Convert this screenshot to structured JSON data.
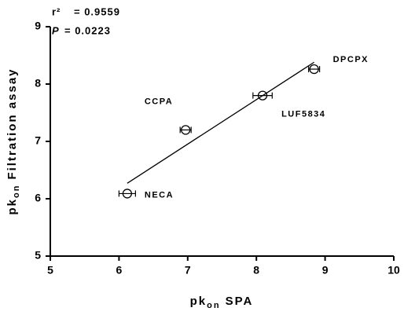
{
  "chart_data": {
    "type": "scatter",
    "xlabel_parts": [
      "pk",
      "on",
      "SPA"
    ],
    "ylabel_parts": [
      "pk",
      "on",
      "Filtration assay"
    ],
    "annotations": [
      {
        "label": "r²",
        "text": "= 0.9559"
      },
      {
        "label": "P",
        "text": "= 0.0223"
      }
    ],
    "labels": [
      "NECA",
      "CCPA",
      "LUF5834",
      "DPCPX"
    ],
    "x": [
      6.12,
      6.97,
      8.09,
      8.84
    ],
    "xerr": [
      0.12,
      0.08,
      0.14,
      0.08
    ],
    "y": [
      6.09,
      7.2,
      7.8,
      8.26
    ],
    "fit": {
      "x": [
        6.12,
        8.84
      ],
      "y": [
        6.27,
        8.38
      ]
    },
    "xlim": [
      5,
      10
    ],
    "ylim": [
      5,
      9
    ],
    "xticks": [
      5,
      6,
      7,
      8,
      9,
      10
    ],
    "yticks": [
      5,
      6,
      7,
      8,
      9
    ],
    "color": "#000000"
  }
}
